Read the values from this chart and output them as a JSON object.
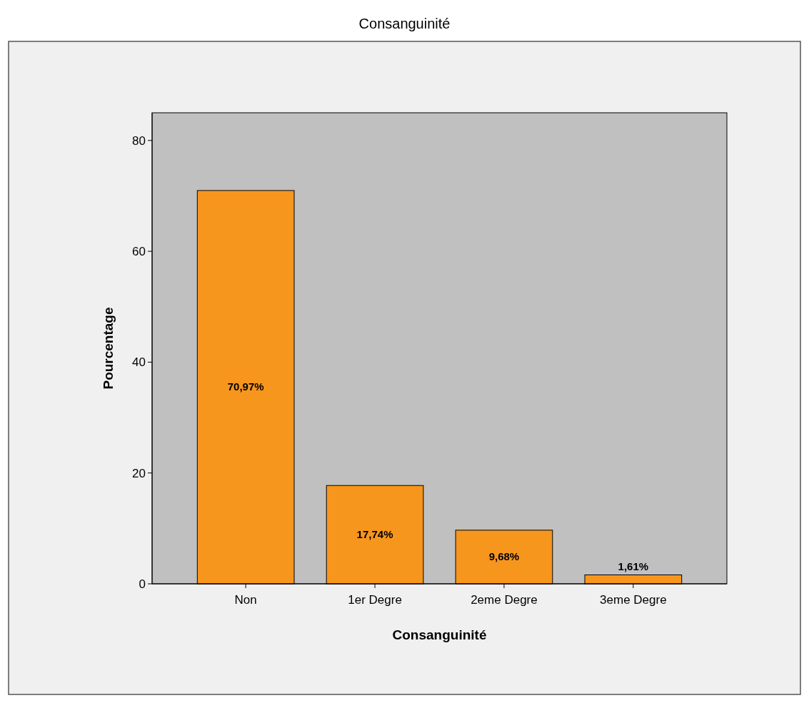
{
  "chart_data": {
    "type": "bar",
    "title": "Consanguinité",
    "xlabel": "Consanguinité",
    "ylabel": "Pourcentage",
    "categories": [
      "Non",
      "1er Degre",
      "2eme Degre",
      "3eme Degre"
    ],
    "values": [
      70.97,
      17.74,
      9.68,
      1.61
    ],
    "value_labels": [
      "70,97%",
      "17,74%",
      "9,68%",
      "1,61%"
    ],
    "color": "#f7961d",
    "ylim": [
      0,
      85
    ],
    "yticks": [
      0,
      20,
      40,
      60,
      80
    ],
    "grid": false
  }
}
